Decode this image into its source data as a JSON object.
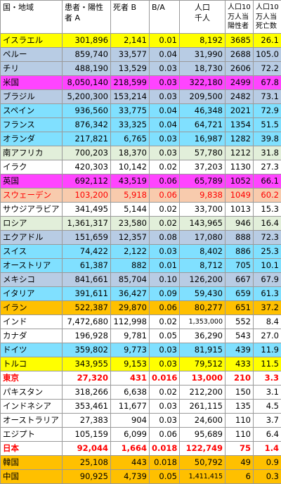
{
  "headers": [
    "国・地域",
    "患者・陽性\n者 A",
    "死者 B",
    "B/A",
    "人口\n千人",
    "人口10\n万人当\n陽性者",
    "人口10\n万人当\n死亡数"
  ],
  "colors": {
    "yellow": "#ffff00",
    "light_blue": "#b8cce4",
    "white": "#ffffff",
    "magenta": "#ff44ff",
    "cyan": "#80e0ff",
    "light_green": "#e2efda",
    "peach": "#f8cbad",
    "orange": "#ffc000"
  },
  "rows": [
    {
      "cells": [
        "イスラエル",
        "301,896",
        "2,141",
        "0.01",
        "8,192",
        "3685",
        "26.1"
      ],
      "bg": "#ffff00",
      "style": ""
    },
    {
      "cells": [
        "ペルー",
        "859,740",
        "33,577",
        "0.04",
        "31,990",
        "2688",
        "105.0"
      ],
      "bg": "#b8cce4",
      "style": ""
    },
    {
      "cells": [
        "チリ",
        "488,190",
        "13,529",
        "0.03",
        "18,730",
        "2606",
        "72.2"
      ],
      "bg": "#b8cce4",
      "style": ""
    },
    {
      "cells": [
        "米国",
        "8,050,140",
        "218,599",
        "0.03",
        "322,180",
        "2499",
        "67.8"
      ],
      "bg": "#ff44ff",
      "style": ""
    },
    {
      "cells": [
        "ブラジル",
        "5,200,300",
        "153,214",
        "0.03",
        "209,500",
        "2482",
        "73.1"
      ],
      "bg": "#b8cce4",
      "style": ""
    },
    {
      "cells": [
        "スペイン",
        "936,560",
        "33,775",
        "0.04",
        "46,348",
        "2021",
        "72.9"
      ],
      "bg": "#80e0ff",
      "style": ""
    },
    {
      "cells": [
        "フランス",
        "876,342",
        "33,325",
        "0.04",
        "64,721",
        "1354",
        "51.5"
      ],
      "bg": "#80e0ff",
      "style": ""
    },
    {
      "cells": [
        "オランダ",
        "217,821",
        "6,765",
        "0.03",
        "16,987",
        "1282",
        "39.8"
      ],
      "bg": "#80e0ff",
      "style": ""
    },
    {
      "cells": [
        "南アフリカ",
        "700,203",
        "18,370",
        "0.03",
        "57,780",
        "1212",
        "31.8"
      ],
      "bg": "#e2efda",
      "style": ""
    },
    {
      "cells": [
        "イラク",
        "420,303",
        "10,142",
        "0.02",
        "37,203",
        "1130",
        "27.3"
      ],
      "bg": "#ffffff",
      "style": ""
    },
    {
      "cells": [
        "英国",
        "692,112",
        "43,519",
        "0.06",
        "65,789",
        "1052",
        "66.1"
      ],
      "bg": "#ff44ff",
      "style": ""
    },
    {
      "cells": [
        "スウェーデン",
        "103,200",
        "5,918",
        "0.06",
        "9,838",
        "1049",
        "60.2"
      ],
      "bg": "#f8cbad",
      "style": "red"
    },
    {
      "cells": [
        "サウジアラビア",
        "341,495",
        "5,144",
        "0.02",
        "33,700",
        "1013",
        "15.3"
      ],
      "bg": "#ffffff",
      "style": ""
    },
    {
      "cells": [
        "ロシア",
        "1,361,317",
        "23,580",
        "0.02",
        "143,965",
        "946",
        "16.4"
      ],
      "bg": "#e2efda",
      "style": ""
    },
    {
      "cells": [
        "エクアドル",
        "151,659",
        "12,357",
        "0.08",
        "17,080",
        "888",
        "72.3"
      ],
      "bg": "#b8cce4",
      "style": ""
    },
    {
      "cells": [
        "スイス",
        "74,422",
        "2,122",
        "0.03",
        "8,402",
        "886",
        "25.3"
      ],
      "bg": "#80e0ff",
      "style": ""
    },
    {
      "cells": [
        "オーストリア",
        "61,387",
        "882",
        "0.01",
        "8,712",
        "705",
        "10.1"
      ],
      "bg": "#80e0ff",
      "style": ""
    },
    {
      "cells": [
        "メキシコ",
        "841,661",
        "85,704",
        "0.10",
        "126,200",
        "667",
        "67.9"
      ],
      "bg": "#b8cce4",
      "style": ""
    },
    {
      "cells": [
        "イタリア",
        "391,611",
        "36,427",
        "0.09",
        "59,430",
        "659",
        "61.3"
      ],
      "bg": "#80e0ff",
      "style": ""
    },
    {
      "cells": [
        "イラン",
        "522,387",
        "29,870",
        "0.06",
        "80,277",
        "651",
        "37.2"
      ],
      "bg": "#ffc000",
      "style": ""
    },
    {
      "cells": [
        "インド",
        "7,472,680",
        "112,998",
        "0.02",
        "1,353,000",
        "552",
        "8.4"
      ],
      "bg": "#ffffff",
      "style": ""
    },
    {
      "cells": [
        "カナダ",
        "196,928",
        "9,781",
        "0.05",
        "36,290",
        "543",
        "27.0"
      ],
      "bg": "#ffffff",
      "style": ""
    },
    {
      "cells": [
        "ドイツ",
        "359,802",
        "9,773",
        "0.03",
        "81,915",
        "439",
        "11.9"
      ],
      "bg": "#80e0ff",
      "style": ""
    },
    {
      "cells": [
        "トルコ",
        "343,955",
        "9,153",
        "0.03",
        "79,512",
        "433",
        "11.5"
      ],
      "bg": "#ffff00",
      "style": ""
    },
    {
      "cells": [
        "東京",
        "27,320",
        "431",
        "0.016",
        "13,000",
        "210",
        "3.3"
      ],
      "bg": "#ffffff",
      "style": "red bold"
    },
    {
      "cells": [
        "パキスタン",
        "318,266",
        "6,638",
        "0.02",
        "212,200",
        "150",
        "3.1"
      ],
      "bg": "#ffffff",
      "style": ""
    },
    {
      "cells": [
        "インドネシア",
        "353,461",
        "11,677",
        "0.03",
        "261,115",
        "135",
        "4.5"
      ],
      "bg": "#ffffff",
      "style": ""
    },
    {
      "cells": [
        "オーストラリア",
        "27,383",
        "904",
        "0.03",
        "24,600",
        "110",
        "3.7"
      ],
      "bg": "#ffffff",
      "style": ""
    },
    {
      "cells": [
        "エジプト",
        "105,159",
        "6,099",
        "0.06",
        "95,689",
        "110",
        "6.4"
      ],
      "bg": "#ffffff",
      "style": ""
    },
    {
      "cells": [
        "日本",
        "92,044",
        "1,664",
        "0.018",
        "122,749",
        "75",
        "1.4"
      ],
      "bg": "#ffffff",
      "style": "red bold"
    },
    {
      "cells": [
        "韓国",
        "25,108",
        "443",
        "0.018",
        "50,792",
        "49",
        "0.9"
      ],
      "bg": "#ffc000",
      "style": ""
    },
    {
      "cells": [
        "中国",
        "90,925",
        "4,739",
        "0.05",
        "1,411,415",
        "6",
        "0.3"
      ],
      "bg": "#ffc000",
      "style": ""
    }
  ]
}
